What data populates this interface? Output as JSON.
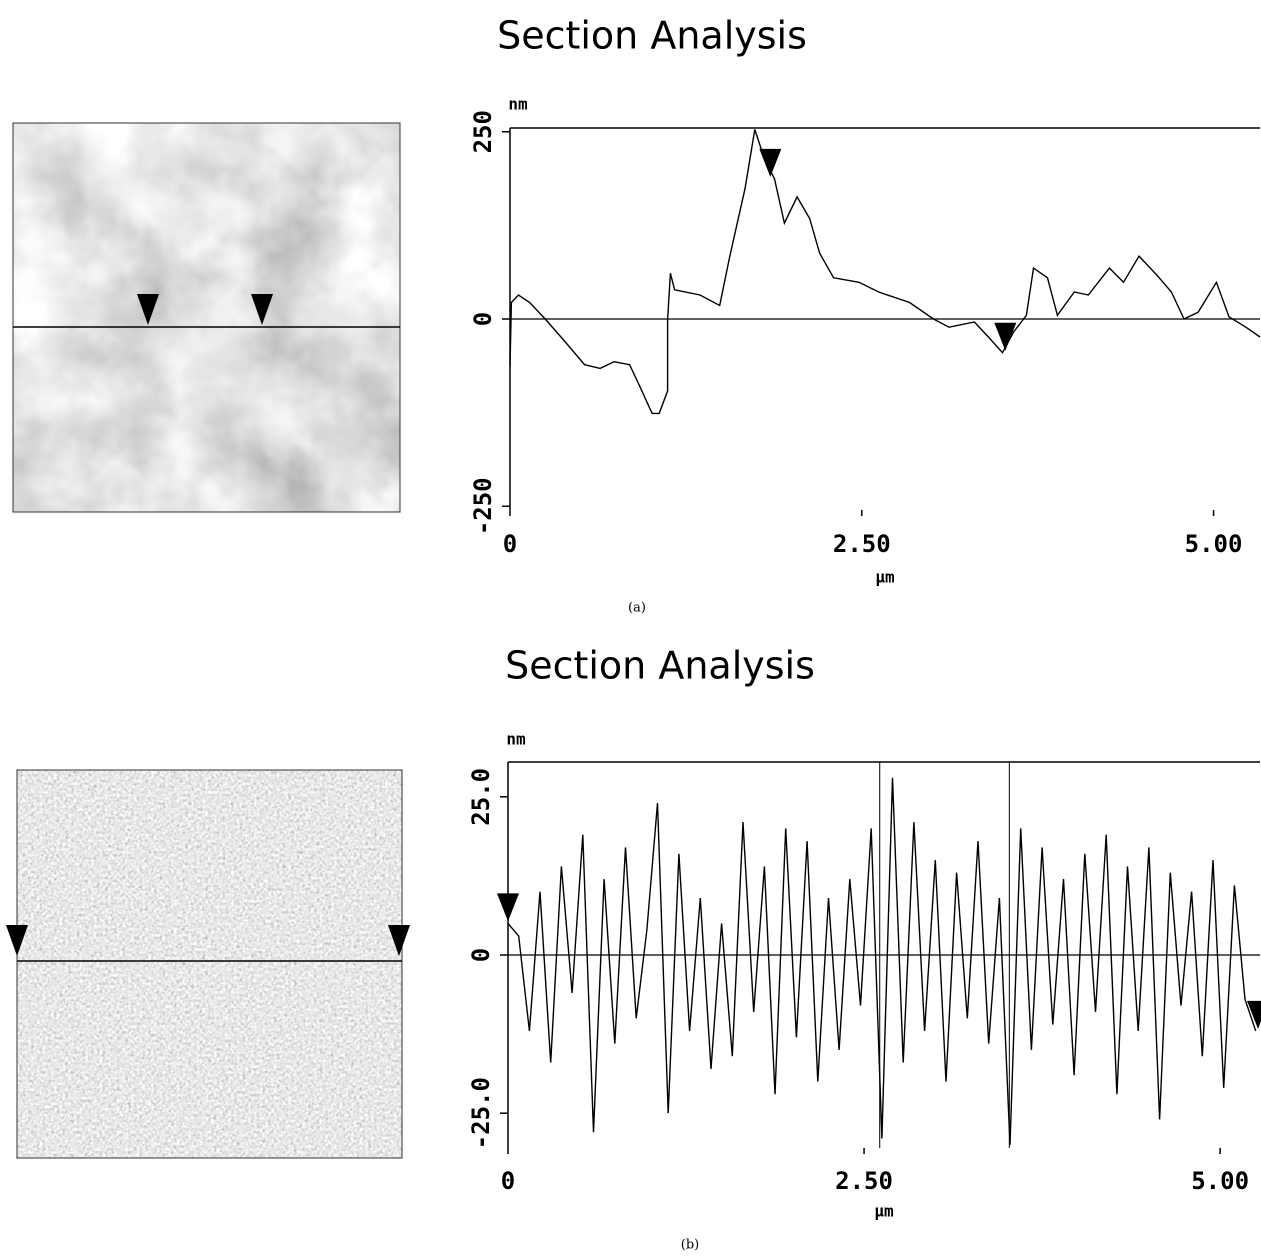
{
  "chart_data": [
    {
      "type": "line",
      "title": "Section Analysis",
      "caption": "(a)",
      "y_label": "nm",
      "x_label": "μm",
      "color": "#000000",
      "xlim": [
        0,
        5.33
      ],
      "ylim": [
        -255,
        255
      ],
      "xticks": [
        0,
        {
          "value": 2.5,
          "label": "2.50"
        },
        {
          "value": 5,
          "label": "5.00"
        }
      ],
      "yticks": [
        -250,
        0,
        250
      ],
      "x": [
        0,
        0.01,
        0.06,
        0.14,
        0.25,
        0.39,
        0.53,
        0.64,
        0.74,
        0.85,
        0.92,
        1.01,
        1.06,
        1.12,
        1.12,
        1.14,
        1.17,
        1.35,
        1.49,
        1.56,
        1.67,
        1.74,
        1.81,
        1.88,
        1.95,
        2.04,
        2.13,
        2.2,
        2.3,
        2.48,
        2.62,
        2.84,
        3.01,
        3.12,
        3.3,
        3.4,
        3.5,
        3.58,
        3.67,
        3.72,
        3.82,
        3.89,
        4.01,
        4.11,
        4.26,
        4.36,
        4.47,
        4.6,
        4.7,
        4.79,
        4.89,
        5.02,
        5.11,
        5.23,
        5.33
      ],
      "values": [
        -63,
        22,
        32,
        22,
        0,
        -30,
        -61,
        -66,
        -57,
        -61,
        -89,
        -126,
        -126,
        -96,
        -1,
        61,
        39,
        32,
        18,
        82,
        174,
        253,
        213,
        187,
        128,
        163,
        134,
        88,
        55,
        49,
        36,
        22,
        0,
        -11,
        -4,
        -24,
        -45,
        -17,
        5,
        68,
        55,
        5,
        36,
        32,
        68,
        49,
        84,
        58,
        36,
        0,
        9,
        49,
        3,
        -11,
        -24
      ]
    },
    {
      "type": "line",
      "title": "Section Analysis",
      "caption": "(b)",
      "y_label": "nm",
      "x_label": "μm",
      "color": "#000000",
      "xlim": [
        0,
        5.28
      ],
      "ylim": [
        -30.5,
        30.5
      ],
      "xticks": [
        0,
        {
          "value": 2.5,
          "label": "2.50"
        },
        {
          "value": 5,
          "label": "5.00"
        }
      ],
      "yticks": [
        {
          "value": -25,
          "label": "-25.0"
        },
        0,
        {
          "value": 25,
          "label": "25.0"
        }
      ],
      "x": [
        0,
        0.075,
        0.15,
        0.225,
        0.3,
        0.375,
        0.45,
        0.525,
        0.6,
        0.675,
        0.75,
        0.825,
        0.9,
        0.975,
        1.05,
        1.125,
        1.2,
        1.275,
        1.35,
        1.425,
        1.5,
        1.575,
        1.65,
        1.725,
        1.8,
        1.875,
        1.95,
        2.025,
        2.1,
        2.175,
        2.25,
        2.325,
        2.4,
        2.475,
        2.55,
        2.625,
        2.7,
        2.775,
        2.85,
        2.925,
        3,
        3.075,
        3.15,
        3.225,
        3.3,
        3.375,
        3.45,
        3.525,
        3.6,
        3.675,
        3.75,
        3.825,
        3.9,
        3.975,
        4.05,
        4.125,
        4.2,
        4.275,
        4.35,
        4.425,
        4.5,
        4.575,
        4.65,
        4.725,
        4.8,
        4.875,
        4.95,
        5.025,
        5.1,
        5.175,
        5.25
      ],
      "values": [
        5,
        3,
        -12,
        10,
        -17,
        14,
        -6,
        19,
        -28,
        12,
        -14,
        17,
        -10,
        4,
        24,
        -25,
        16,
        -12,
        9,
        -18,
        5,
        -16,
        21,
        -9,
        14,
        -22,
        20,
        -13,
        18,
        -20,
        9,
        -15,
        12,
        -8,
        20,
        -29,
        28,
        -17,
        21,
        -12,
        15,
        -20,
        13,
        -10,
        18,
        -14,
        9,
        -30,
        20,
        -15,
        17,
        -11,
        12,
        -19,
        16,
        -9,
        19,
        -22,
        14,
        -12,
        17,
        -26,
        13,
        -8,
        10,
        -16,
        15,
        -21,
        11,
        -7,
        -12
      ]
    }
  ]
}
